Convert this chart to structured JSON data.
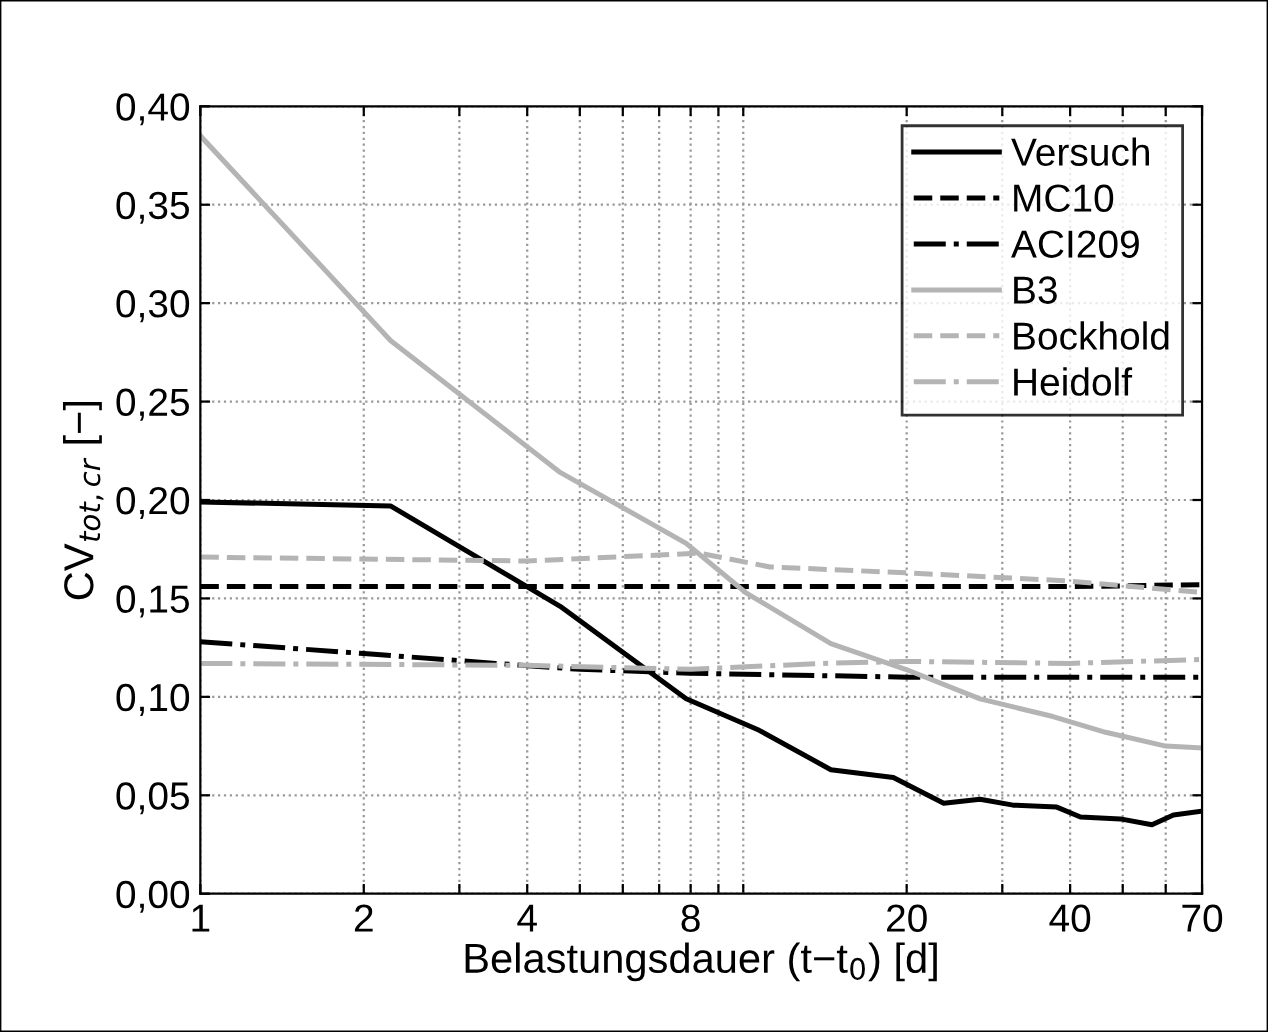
{
  "chart_data": {
    "type": "line",
    "xlabel": "Belastungsdauer (t−t$_{0}$) [d]",
    "ylabel": "CV$_{tot,cr}$ [−]",
    "log": "x",
    "xlim": [
      1,
      70
    ],
    "ylim": [
      0,
      0.4
    ],
    "xticks": [
      1,
      2,
      {
        "value": 3,
        "label": null
      },
      4,
      {
        "value": 5,
        "label": null
      },
      {
        "value": 6,
        "label": null
      },
      {
        "value": 7,
        "label": null
      },
      8,
      {
        "value": 9,
        "label": null
      },
      {
        "value": 10,
        "label": null
      },
      20,
      {
        "value": 30,
        "label": null
      },
      40,
      {
        "value": 50,
        "label": null
      },
      {
        "value": 60,
        "label": null
      },
      70
    ],
    "yticks": [
      {
        "value": 0,
        "label": "0,00"
      },
      {
        "value": 0.05,
        "label": "0,05"
      },
      {
        "value": 0.1,
        "label": "0,10"
      },
      {
        "value": 0.15,
        "label": "0,15"
      },
      {
        "value": 0.2,
        "label": "0,20"
      },
      {
        "value": 0.25,
        "label": "0,25"
      },
      {
        "value": 0.3,
        "label": "0,30"
      },
      {
        "value": 0.35,
        "label": "0,35"
      },
      {
        "value": 0.4,
        "label": "0,40"
      }
    ],
    "grid": true,
    "legend": "top right",
    "marker": "none",
    "series": [
      {
        "name": "Versuch",
        "color": "#000000",
        "line_style": "solid",
        "x": [
          1,
          2.24,
          4.6,
          7.85,
          10.7,
          14.5,
          18.9,
          23.4,
          27.3,
          31.4,
          37.8,
          41.8,
          49.5,
          56.6,
          62,
          70
        ],
        "values": [
          0.199,
          0.197,
          0.146,
          0.099,
          0.083,
          0.063,
          0.059,
          0.046,
          0.048,
          0.045,
          0.044,
          0.039,
          0.038,
          0.035,
          0.04,
          0.042
        ]
      },
      {
        "name": "MC10",
        "color": "#000000",
        "line_style": "dashed",
        "x": [
          1,
          10,
          40,
          70
        ],
        "values": [
          0.156,
          0.156,
          0.156,
          0.157
        ]
      },
      {
        "name": "ACI209",
        "color": "#000000",
        "line_style": "dashdot",
        "x": [
          1,
          2,
          3.5,
          5,
          8,
          20,
          70
        ],
        "values": [
          0.128,
          0.122,
          0.117,
          0.114,
          0.112,
          0.11,
          0.11
        ]
      },
      {
        "name": "B3",
        "color": "#b4b4b4",
        "line_style": "solid",
        "x": [
          1,
          2.24,
          4.6,
          7.85,
          10.1,
          14.5,
          19.9,
          27.3,
          37.2,
          46.5,
          60,
          70
        ],
        "values": [
          0.385,
          0.281,
          0.214,
          0.178,
          0.153,
          0.127,
          0.114,
          0.099,
          0.09,
          0.082,
          0.075,
          0.074
        ]
      },
      {
        "name": "Bockhold",
        "color": "#b4b4b4",
        "line_style": "dashed",
        "x": [
          1,
          4,
          8.3,
          11.2,
          20,
          39,
          70
        ],
        "values": [
          0.171,
          0.169,
          0.173,
          0.166,
          0.163,
          0.159,
          0.153
        ]
      },
      {
        "name": "Heidolf",
        "color": "#b4b4b4",
        "line_style": "dashdot",
        "x": [
          1,
          4,
          8,
          14,
          20,
          40,
          70
        ],
        "values": [
          0.117,
          0.116,
          0.114,
          0.117,
          0.118,
          0.117,
          0.119
        ]
      }
    ]
  }
}
